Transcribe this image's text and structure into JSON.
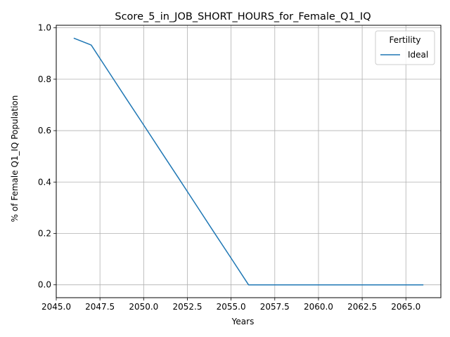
{
  "chart_data": {
    "type": "line",
    "title": "Score_5_in_JOB_SHORT_HOURS_for_Female_Q1_IQ",
    "xlabel": "Years",
    "ylabel": "% of Female Q1_IQ Population",
    "xlim": [
      2045,
      2067
    ],
    "ylim": [
      -0.05,
      1.01
    ],
    "x_ticks": [
      2045,
      2047.5,
      2050,
      2052.5,
      2055,
      2057.5,
      2060,
      2062.5,
      2065
    ],
    "x_tick_labels": [
      "2045.0",
      "2047.5",
      "2050.0",
      "2052.5",
      "2055.0",
      "2057.5",
      "2060.0",
      "2062.5",
      "2065.0"
    ],
    "y_ticks": [
      0.0,
      0.2,
      0.4,
      0.6,
      0.8,
      1.0
    ],
    "y_tick_labels": [
      "0.0",
      "0.2",
      "0.4",
      "0.6",
      "0.8",
      "1.0"
    ],
    "grid": true,
    "legend": {
      "title": "Fertility",
      "placement": "top-right"
    },
    "series": [
      {
        "name": "Ideal",
        "color": "#1f77b4",
        "x": [
          2046,
          2047,
          2048,
          2049,
          2050,
          2051,
          2052,
          2053,
          2054,
          2055,
          2056,
          2057,
          2058,
          2059,
          2060,
          2061,
          2062,
          2063,
          2064,
          2065,
          2066
        ],
        "y": [
          0.96,
          0.933,
          0.829,
          0.725,
          0.622,
          0.518,
          0.415,
          0.311,
          0.207,
          0.104,
          0.0,
          0.0,
          0.0,
          0.0,
          0.0,
          0.0,
          0.0,
          0.0,
          0.0,
          0.0,
          0.0
        ]
      }
    ]
  }
}
